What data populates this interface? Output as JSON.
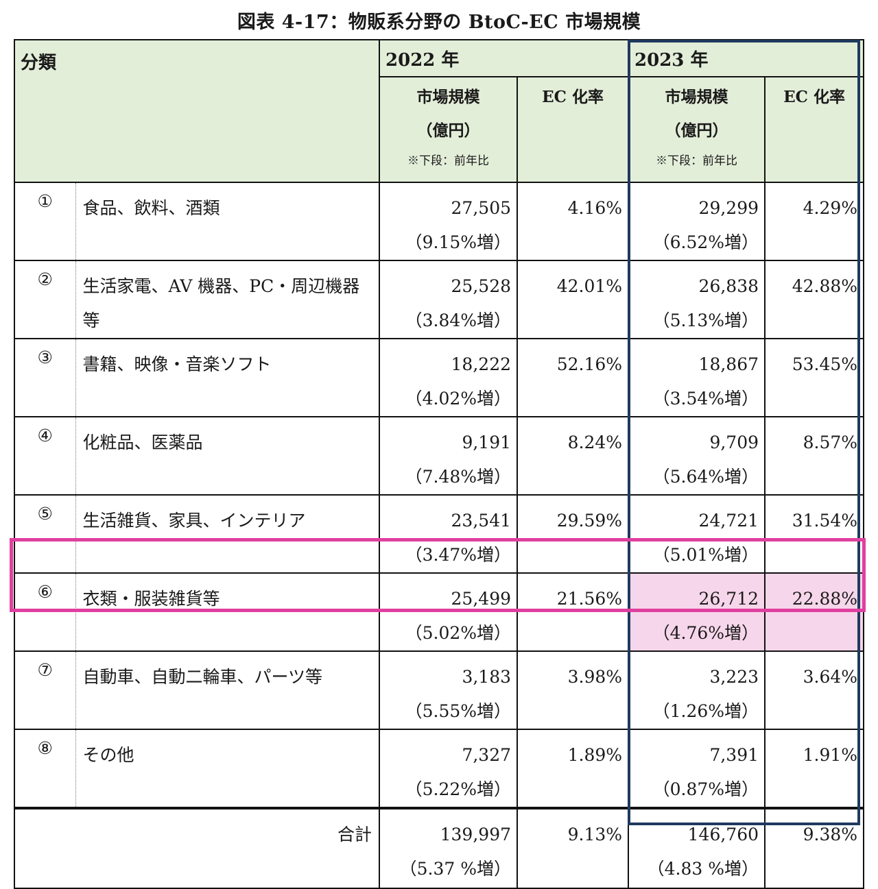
{
  "title": "図表 4-17：物販系分野の BtoC-EC 市場規模",
  "header": {
    "category": "分類",
    "year1": "2022 年",
    "year2": "2023 年",
    "market_size_line1": "市場規模",
    "market_size_line2": "（億円）",
    "market_size_note": "※下段：前年比",
    "ec_rate": "EC 化率"
  },
  "rows": [
    {
      "num": "①",
      "category": "食品、飲料、酒類",
      "size_2022": "27,505",
      "growth_2022": "（9.15%増）",
      "ec_2022": "4.16%",
      "size_2023": "29,299",
      "growth_2023": "（6.52%増）",
      "ec_2023": "4.29%"
    },
    {
      "num": "②",
      "category": "生活家電、AV 機器、PC・周辺機器等",
      "size_2022": "25,528",
      "growth_2022": "（3.84%増）",
      "ec_2022": "42.01%",
      "size_2023": "26,838",
      "growth_2023": "（5.13%増）",
      "ec_2023": "42.88%"
    },
    {
      "num": "③",
      "category": "書籍、映像・音楽ソフト",
      "size_2022": "18,222",
      "growth_2022": "（4.02%増）",
      "ec_2022": "52.16%",
      "size_2023": "18,867",
      "growth_2023": "（3.54%増）",
      "ec_2023": "53.45%"
    },
    {
      "num": "④",
      "category": "化粧品、医薬品",
      "size_2022": "9,191",
      "growth_2022": "（7.48%増）",
      "ec_2022": "8.24%",
      "size_2023": "9,709",
      "growth_2023": "（5.64%増）",
      "ec_2023": "8.57%"
    },
    {
      "num": "⑤",
      "category": "生活雑貨、家具、インテリア",
      "size_2022": "23,541",
      "growth_2022": "（3.47%増）",
      "ec_2022": "29.59%",
      "size_2023": "24,721",
      "growth_2023": "（5.01%増）",
      "ec_2023": "31.54%"
    },
    {
      "num": "⑥",
      "category": "衣類・服装雑貨等",
      "size_2022": "25,499",
      "growth_2022": "（5.02%増）",
      "ec_2022": "21.56%",
      "size_2023": "26,712",
      "growth_2023": "（4.76%増）",
      "ec_2023": "22.88%"
    },
    {
      "num": "⑦",
      "category": "自動車、自動二輪車、パーツ等",
      "size_2022": "3,183",
      "growth_2022": "（5.55%増）",
      "ec_2022": "3.98%",
      "size_2023": "3,223",
      "growth_2023": "（1.26%増）",
      "ec_2023": "3.64%"
    },
    {
      "num": "⑧",
      "category": "その他",
      "size_2022": "7,327",
      "growth_2022": "（5.22%増）",
      "ec_2022": "1.89%",
      "size_2023": "7,391",
      "growth_2023": "（0.87%増）",
      "ec_2023": "1.91%"
    }
  ],
  "total": {
    "label": "合計",
    "size_2022": "139,997",
    "growth_2022": "（5.37 %増）",
    "ec_2022": "9.13%",
    "size_2023": "146,760",
    "growth_2023": "（4.83 %増）",
    "ec_2023": "9.38%"
  },
  "colors": {
    "header_bg": "#e3eed9",
    "highlight_2023_border": "#1f3a5f",
    "highlight_row_border": "#e03fa0",
    "highlight_cell_bg": "#f6d6ea"
  }
}
